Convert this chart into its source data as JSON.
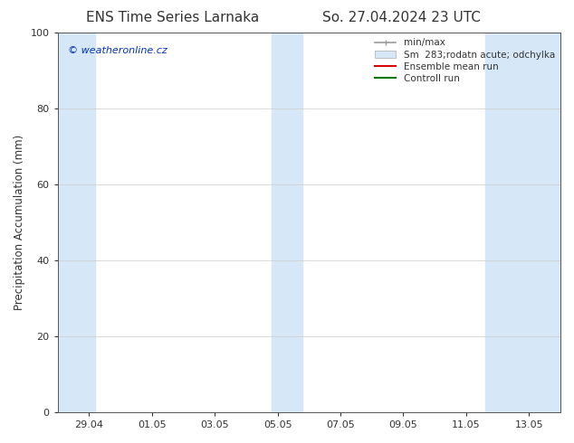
{
  "title_left": "ENS Time Series Larnaka",
  "title_right": "So. 27.04.2024 23 UTC",
  "ylabel": "Precipitation Accumulation (mm)",
  "ylim": [
    0,
    100
  ],
  "yticks": [
    0,
    20,
    40,
    60,
    80,
    100
  ],
  "background_color": "#ffffff",
  "plot_bg_color": "#ffffff",
  "watermark": "© weatheronline.cz",
  "watermark_color": "#0033bb",
  "legend_labels": [
    "min/max",
    "Sm  283;rodatn acute; odchylka",
    "Ensemble mean run",
    "Controll run"
  ],
  "legend_colors_line": [
    "#aaaaaa",
    "#ccddee",
    "#ff0000",
    "#008800"
  ],
  "shaded_color": "#d6e8f7",
  "shaded_regions": [
    {
      "xstart": 0.0,
      "xend": 1.2
    },
    {
      "xstart": 6.8,
      "xend": 7.8
    },
    {
      "xstart": 13.6,
      "xend": 16.0
    }
  ],
  "xtick_labels": [
    "29.04",
    "01.05",
    "03.05",
    "05.05",
    "07.05",
    "09.05",
    "11.05",
    "13.05"
  ],
  "xtick_positions": [
    1.0,
    3.0,
    5.0,
    7.0,
    9.0,
    11.0,
    13.0,
    15.0
  ],
  "xmin": 0.0,
  "xmax": 16.0,
  "font_color": "#333333",
  "grid_color": "#cccccc",
  "title_fontsize": 11,
  "axis_label_fontsize": 8.5,
  "tick_fontsize": 8,
  "legend_fontsize": 7.5
}
